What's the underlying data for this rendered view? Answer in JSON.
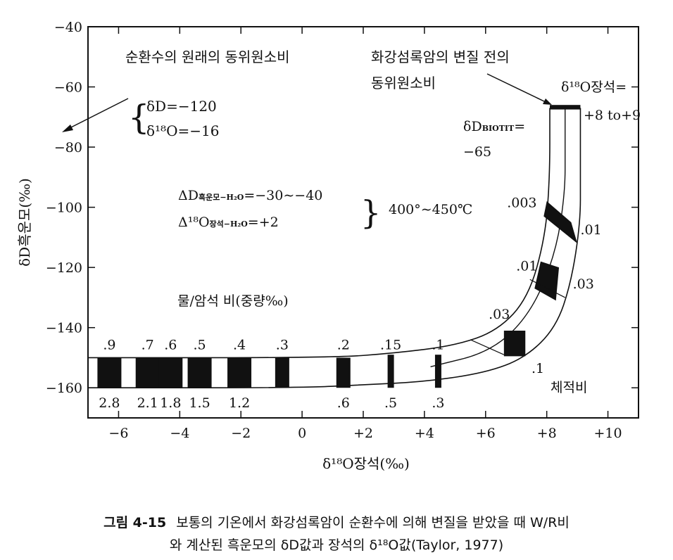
{
  "chart_data": {
    "type": "line",
    "xlim": [
      -7,
      11
    ],
    "ylim": [
      -170,
      -40
    ],
    "x_ticks": [
      -6,
      -4,
      -2,
      0,
      2,
      4,
      6,
      8,
      10
    ],
    "x_tick_labels": [
      "−6",
      "−4",
      "−2",
      "0",
      "+2",
      "+4",
      "+6",
      "+8",
      "+10"
    ],
    "y_ticks": [
      -40,
      -60,
      -80,
      -100,
      -120,
      -140,
      -160
    ],
    "y_tick_labels": [
      "−40",
      "−60",
      "−80",
      "−100",
      "−120",
      "−140",
      "−160"
    ],
    "xlabel": "δ¹⁸O장석(‰)",
    "ylabel": "δD흑운모(‰)",
    "band_left_edge": [
      [
        -7,
        -150
      ],
      [
        1,
        -150
      ],
      [
        3,
        -148.5
      ],
      [
        5,
        -146
      ],
      [
        6.4,
        -141
      ],
      [
        7.4,
        -130
      ],
      [
        7.95,
        -110
      ],
      [
        8.1,
        -90
      ],
      [
        8.1,
        -67
      ]
    ],
    "band_right_edge": [
      [
        -7,
        -160
      ],
      [
        0,
        -160
      ],
      [
        2,
        -159
      ],
      [
        4,
        -158
      ],
      [
        6,
        -155
      ],
      [
        7.3,
        -150
      ],
      [
        8.3,
        -140
      ],
      [
        8.8,
        -125
      ],
      [
        9.1,
        -105
      ],
      [
        9.1,
        -90
      ],
      [
        9.1,
        -67
      ]
    ],
    "mid_curve": [
      [
        4.2,
        -153
      ],
      [
        6.2,
        -148
      ],
      [
        7.5,
        -135
      ],
      [
        8.3,
        -115
      ],
      [
        8.6,
        -95
      ],
      [
        8.6,
        -80
      ],
      [
        8.6,
        -67
      ]
    ],
    "water_rock_marks": [
      {
        "x": -6.3,
        "top": ".9",
        "bottom": "2.8"
      },
      {
        "x": -5.05,
        "top": ".7",
        "bottom": "2.1"
      },
      {
        "x": -4.3,
        "top": ".6",
        "bottom": "1.8"
      },
      {
        "x": -3.35,
        "top": ".5",
        "bottom": "1.5"
      },
      {
        "x": -2.05,
        "top": ".4",
        "bottom": "1.2"
      },
      {
        "x": -0.65,
        "top": ".3",
        "bottom": ""
      },
      {
        "x": 1.35,
        "top": ".2",
        "bottom": ".6"
      },
      {
        "x": 2.9,
        "top": ".15",
        "bottom": ".5"
      },
      {
        "x": 4.45,
        "top": ".1",
        "bottom": ".3"
      }
    ],
    "curve_labels": [
      {
        "text": ".03",
        "x": 6.1,
        "y": -137
      },
      {
        "text": ".1",
        "x": 7.5,
        "y": -155
      },
      {
        "text": ".01",
        "x": 7.0,
        "y": -121
      },
      {
        "text": ".03",
        "x": 8.85,
        "y": -127
      },
      {
        "text": ".003",
        "x": 6.7,
        "y": -100
      },
      {
        "text": ".01",
        "x": 9.1,
        "y": -109
      }
    ],
    "annotations": {
      "meteoric_title": "순환수의 원래의 동위원소비",
      "meteoric_dD": "δD=−120",
      "meteoric_d18O": "δ¹⁸O=−16",
      "granite_title_1": "화강섬록암의 변질 전의",
      "granite_title_2": "동위원소비",
      "feldspar_1": "δ¹⁸O장석=",
      "feldspar_2": "+8 to+9",
      "biotite_1": "δD",
      "biotite_sub": "BIOTIT",
      "biotite_eq": "=",
      "biotite_2": "−65",
      "fract_dD_1": "ΔD",
      "fract_dD_sub": "흑운모−H₂O",
      "fract_dD_2": "=−30∼−40",
      "fract_O_1": "Δ¹⁸O",
      "fract_O_sub": "장석−H₂O",
      "fract_O_2": "=+2",
      "temperature": "400°∼450℃",
      "ratio_label": "물/암석 비(중량‰)",
      "volume_ratio": "체적비"
    }
  },
  "caption": {
    "label": "그림 4-15",
    "line1": "보통의 기온에서 화강섬록암이 순환수에 의해 변질을 받았을 때 W/R비",
    "line2": "와 계산된 흑운모의 δD값과 장석의 δ¹⁸O값(Taylor, 1977)"
  }
}
